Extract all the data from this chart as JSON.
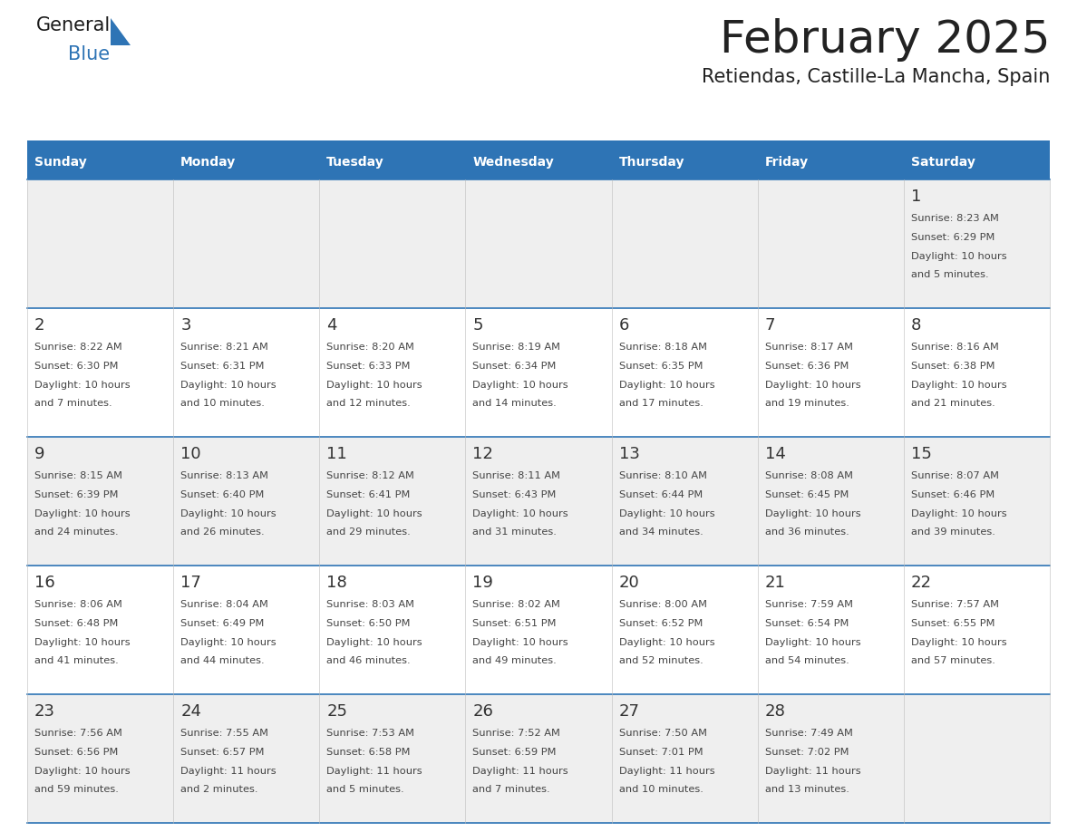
{
  "title": "February 2025",
  "subtitle": "Retiendas, Castille-La Mancha, Spain",
  "header_bg": "#2E74B5",
  "header_text_color": "#FFFFFF",
  "cell_bg_row0": "#EFEFEF",
  "cell_bg_row1": "#FFFFFF",
  "cell_bg_row2": "#EFEFEF",
  "cell_bg_row3": "#FFFFFF",
  "cell_bg_row4": "#EFEFEF",
  "day_names": [
    "Sunday",
    "Monday",
    "Tuesday",
    "Wednesday",
    "Thursday",
    "Friday",
    "Saturday"
  ],
  "title_color": "#222222",
  "subtitle_color": "#222222",
  "date_color": "#333333",
  "info_color": "#444444",
  "divider_color": "#2E74B5",
  "logo_general_color": "#1A1A1A",
  "logo_blue_color": "#2E74B5",
  "logo_triangle_color": "#2E74B5",
  "days": [
    {
      "date": 1,
      "dow": 6,
      "sunrise": "8:23 AM",
      "sunset": "6:29 PM",
      "daylight": "10 hours and 5 minutes."
    },
    {
      "date": 2,
      "dow": 0,
      "sunrise": "8:22 AM",
      "sunset": "6:30 PM",
      "daylight": "10 hours and 7 minutes."
    },
    {
      "date": 3,
      "dow": 1,
      "sunrise": "8:21 AM",
      "sunset": "6:31 PM",
      "daylight": "10 hours and 10 minutes."
    },
    {
      "date": 4,
      "dow": 2,
      "sunrise": "8:20 AM",
      "sunset": "6:33 PM",
      "daylight": "10 hours and 12 minutes."
    },
    {
      "date": 5,
      "dow": 3,
      "sunrise": "8:19 AM",
      "sunset": "6:34 PM",
      "daylight": "10 hours and 14 minutes."
    },
    {
      "date": 6,
      "dow": 4,
      "sunrise": "8:18 AM",
      "sunset": "6:35 PM",
      "daylight": "10 hours and 17 minutes."
    },
    {
      "date": 7,
      "dow": 5,
      "sunrise": "8:17 AM",
      "sunset": "6:36 PM",
      "daylight": "10 hours and 19 minutes."
    },
    {
      "date": 8,
      "dow": 6,
      "sunrise": "8:16 AM",
      "sunset": "6:38 PM",
      "daylight": "10 hours and 21 minutes."
    },
    {
      "date": 9,
      "dow": 0,
      "sunrise": "8:15 AM",
      "sunset": "6:39 PM",
      "daylight": "10 hours and 24 minutes."
    },
    {
      "date": 10,
      "dow": 1,
      "sunrise": "8:13 AM",
      "sunset": "6:40 PM",
      "daylight": "10 hours and 26 minutes."
    },
    {
      "date": 11,
      "dow": 2,
      "sunrise": "8:12 AM",
      "sunset": "6:41 PM",
      "daylight": "10 hours and 29 minutes."
    },
    {
      "date": 12,
      "dow": 3,
      "sunrise": "8:11 AM",
      "sunset": "6:43 PM",
      "daylight": "10 hours and 31 minutes."
    },
    {
      "date": 13,
      "dow": 4,
      "sunrise": "8:10 AM",
      "sunset": "6:44 PM",
      "daylight": "10 hours and 34 minutes."
    },
    {
      "date": 14,
      "dow": 5,
      "sunrise": "8:08 AM",
      "sunset": "6:45 PM",
      "daylight": "10 hours and 36 minutes."
    },
    {
      "date": 15,
      "dow": 6,
      "sunrise": "8:07 AM",
      "sunset": "6:46 PM",
      "daylight": "10 hours and 39 minutes."
    },
    {
      "date": 16,
      "dow": 0,
      "sunrise": "8:06 AM",
      "sunset": "6:48 PM",
      "daylight": "10 hours and 41 minutes."
    },
    {
      "date": 17,
      "dow": 1,
      "sunrise": "8:04 AM",
      "sunset": "6:49 PM",
      "daylight": "10 hours and 44 minutes."
    },
    {
      "date": 18,
      "dow": 2,
      "sunrise": "8:03 AM",
      "sunset": "6:50 PM",
      "daylight": "10 hours and 46 minutes."
    },
    {
      "date": 19,
      "dow": 3,
      "sunrise": "8:02 AM",
      "sunset": "6:51 PM",
      "daylight": "10 hours and 49 minutes."
    },
    {
      "date": 20,
      "dow": 4,
      "sunrise": "8:00 AM",
      "sunset": "6:52 PM",
      "daylight": "10 hours and 52 minutes."
    },
    {
      "date": 21,
      "dow": 5,
      "sunrise": "7:59 AM",
      "sunset": "6:54 PM",
      "daylight": "10 hours and 54 minutes."
    },
    {
      "date": 22,
      "dow": 6,
      "sunrise": "7:57 AM",
      "sunset": "6:55 PM",
      "daylight": "10 hours and 57 minutes."
    },
    {
      "date": 23,
      "dow": 0,
      "sunrise": "7:56 AM",
      "sunset": "6:56 PM",
      "daylight": "10 hours and 59 minutes."
    },
    {
      "date": 24,
      "dow": 1,
      "sunrise": "7:55 AM",
      "sunset": "6:57 PM",
      "daylight": "11 hours and 2 minutes."
    },
    {
      "date": 25,
      "dow": 2,
      "sunrise": "7:53 AM",
      "sunset": "6:58 PM",
      "daylight": "11 hours and 5 minutes."
    },
    {
      "date": 26,
      "dow": 3,
      "sunrise": "7:52 AM",
      "sunset": "6:59 PM",
      "daylight": "11 hours and 7 minutes."
    },
    {
      "date": 27,
      "dow": 4,
      "sunrise": "7:50 AM",
      "sunset": "7:01 PM",
      "daylight": "11 hours and 10 minutes."
    },
    {
      "date": 28,
      "dow": 5,
      "sunrise": "7:49 AM",
      "sunset": "7:02 PM",
      "daylight": "11 hours and 13 minutes."
    }
  ]
}
